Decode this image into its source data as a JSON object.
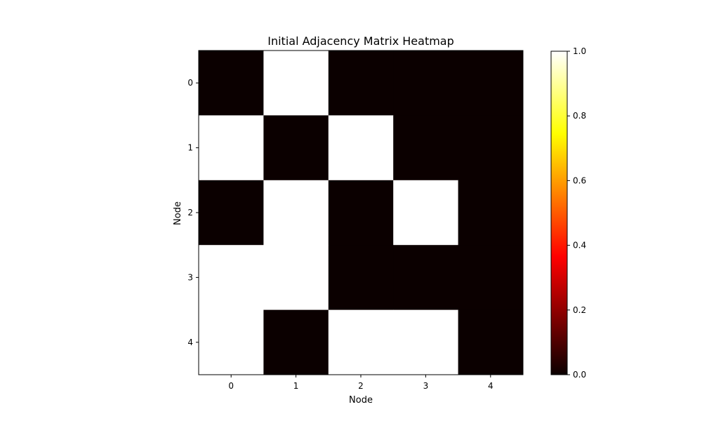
{
  "chart_data": {
    "type": "heatmap",
    "title": "Initial Adjacency Matrix Heatmap",
    "xlabel": "Node",
    "ylabel": "Node",
    "x_categories": [
      "0",
      "1",
      "2",
      "3",
      "4"
    ],
    "y_categories": [
      "0",
      "1",
      "2",
      "3",
      "4"
    ],
    "matrix": [
      [
        0,
        1,
        0,
        0,
        0
      ],
      [
        1,
        0,
        1,
        0,
        0
      ],
      [
        0,
        1,
        0,
        1,
        0
      ],
      [
        1,
        1,
        0,
        0,
        0
      ],
      [
        1,
        0,
        1,
        1,
        0
      ]
    ],
    "colormap": "hot",
    "value_range": [
      0,
      1
    ],
    "colorbar_ticks": [
      "0.0",
      "0.2",
      "0.4",
      "0.6",
      "0.8",
      "1.0"
    ],
    "colors": {
      "low": "#0b0000",
      "high": "#ffffff"
    }
  }
}
